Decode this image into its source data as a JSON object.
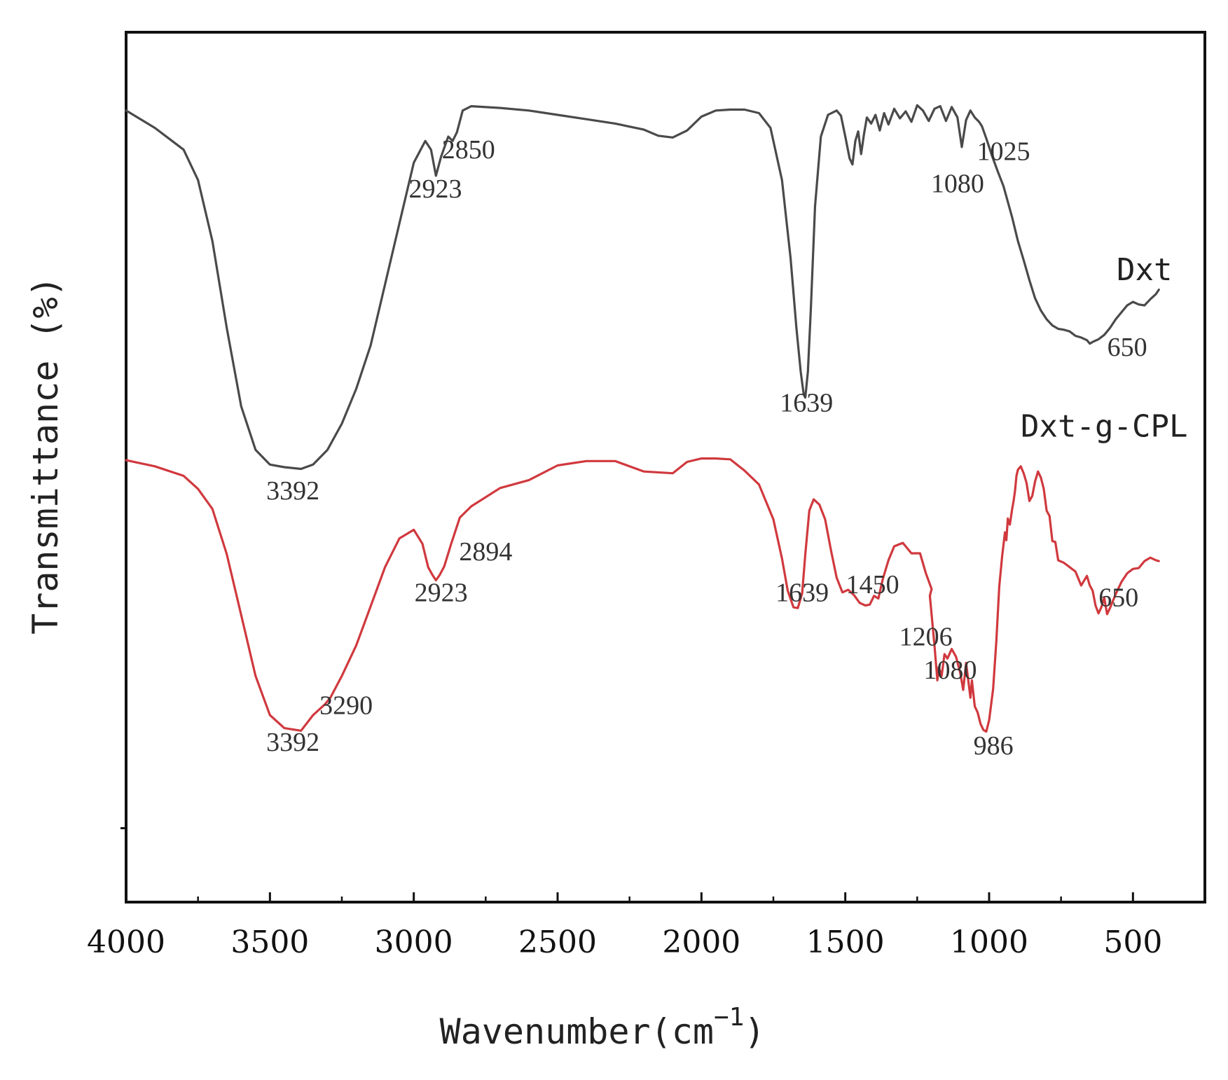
{
  "chart_data": {
    "type": "line",
    "title": "",
    "xlabel": "Wavenumber(cm",
    "xlabel_sup": "−1",
    "xlabel_close": ")",
    "ylabel": "Transmittance (%)",
    "xlim": [
      4000,
      250
    ],
    "ylim": [
      0,
      100
    ],
    "x_ticks": [
      4000,
      3500,
      3000,
      2500,
      2000,
      1500,
      1000,
      500
    ],
    "x_tick_labels": [
      "4000",
      "3500",
      "3000",
      "2500",
      "2000",
      "1500",
      "1000",
      "500"
    ],
    "grid": false,
    "series": [
      {
        "name": "Dxt",
        "color": "#4a4a4a",
        "x": [
          4000,
          3900,
          3800,
          3750,
          3700,
          3650,
          3600,
          3550,
          3500,
          3450,
          3392,
          3350,
          3300,
          3250,
          3200,
          3150,
          3100,
          3050,
          3000,
          2960,
          2940,
          2923,
          2905,
          2880,
          2865,
          2850,
          2830,
          2800,
          2700,
          2600,
          2500,
          2400,
          2300,
          2200,
          2150,
          2100,
          2050,
          2000,
          1950,
          1900,
          1850,
          1800,
          1760,
          1720,
          1690,
          1670,
          1655,
          1645,
          1639,
          1630,
          1620,
          1605,
          1585,
          1560,
          1530,
          1515,
          1500,
          1485,
          1475,
          1465,
          1455,
          1445,
          1435,
          1425,
          1410,
          1395,
          1380,
          1365,
          1350,
          1330,
          1310,
          1290,
          1270,
          1250,
          1230,
          1210,
          1190,
          1170,
          1150,
          1130,
          1110,
          1095,
          1080,
          1065,
          1050,
          1035,
          1025,
          1010,
          990,
          970,
          950,
          920,
          900,
          880,
          860,
          840,
          820,
          800,
          780,
          760,
          740,
          720,
          700,
          680,
          660,
          650,
          640,
          620,
          600,
          580,
          560,
          540,
          520,
          500,
          480,
          460,
          440,
          420,
          410
        ],
        "values": [
          91,
          89,
          86.5,
          83,
          76,
          66,
          57,
          52,
          50.3,
          50,
          49.8,
          50.3,
          52,
          55,
          59,
          64,
          71,
          78,
          85,
          87.5,
          86.5,
          83.5,
          85.7,
          88,
          87.5,
          88.5,
          91,
          91.5,
          91.3,
          91,
          90.5,
          90,
          89.5,
          88.8,
          88.1,
          87.9,
          88.7,
          90.3,
          91,
          91.1,
          91.1,
          90.7,
          89,
          83,
          74,
          66,
          61,
          58.5,
          58,
          61,
          68,
          80,
          88,
          90.5,
          91,
          90.4,
          88,
          85.5,
          84.8,
          87.5,
          88.6,
          86,
          88.3,
          90.2,
          89.5,
          90.5,
          88.7,
          90.7,
          89.4,
          91.2,
          90.1,
          90.9,
          89.7,
          91.6,
          91,
          89.8,
          91.2,
          91.5,
          89.8,
          91.4,
          90.2,
          86.8,
          89.9,
          91,
          90.2,
          89.7,
          89.2,
          87.8,
          85.8,
          84,
          82.3,
          78.7,
          76,
          73.8,
          71.5,
          69.4,
          68,
          67,
          66.3,
          65.9,
          65.8,
          65.6,
          65.1,
          64.9,
          64.6,
          64.2,
          64.4,
          64.7,
          65.2,
          66,
          67,
          67.8,
          68.6,
          69,
          68.7,
          68.6,
          69.3,
          69.9,
          70.4
        ]
      },
      {
        "name": "Dxt-g-CPL",
        "color": "#d0393e",
        "x": [
          4000,
          3900,
          3800,
          3750,
          3700,
          3650,
          3600,
          3550,
          3500,
          3450,
          3392,
          3350,
          3310,
          3290,
          3250,
          3200,
          3150,
          3100,
          3050,
          3000,
          2970,
          2950,
          2935,
          2923,
          2910,
          2894,
          2870,
          2840,
          2800,
          2700,
          2600,
          2500,
          2400,
          2300,
          2200,
          2100,
          2050,
          2000,
          1950,
          1900,
          1850,
          1800,
          1750,
          1720,
          1700,
          1680,
          1665,
          1650,
          1639,
          1625,
          1610,
          1590,
          1570,
          1550,
          1530,
          1510,
          1490,
          1470,
          1450,
          1430,
          1415,
          1400,
          1385,
          1370,
          1350,
          1330,
          1300,
          1270,
          1240,
          1220,
          1200,
          1206,
          1190,
          1180,
          1175,
          1165,
          1155,
          1145,
          1130,
          1115,
          1100,
          1090,
          1080,
          1070,
          1065,
          1060,
          1050,
          1040,
          1030,
          1020,
          1010,
          1000,
          986,
          975,
          965,
          955,
          945,
          940,
          935,
          928,
          920,
          915,
          910,
          905,
          900,
          890,
          880,
          870,
          860,
          850,
          840,
          830,
          820,
          810,
          800,
          790,
          780,
          770,
          760,
          740,
          720,
          700,
          680,
          660,
          650,
          640,
          630,
          620,
          610,
          600,
          590,
          580,
          560,
          540,
          520,
          500,
          480,
          460,
          440,
          420,
          410
        ],
        "values": [
          50.8,
          50.1,
          49,
          47.5,
          45.2,
          40,
          33,
          26,
          21.5,
          20,
          19.7,
          21.5,
          22.7,
          23.5,
          26,
          29.5,
          34,
          38.5,
          41.8,
          42.8,
          41.2,
          38.5,
          37.6,
          37,
          37.6,
          38.6,
          41.2,
          44.2,
          45.5,
          47.6,
          48.5,
          50.2,
          50.7,
          50.7,
          49.5,
          49.3,
          50.6,
          51,
          51,
          50.9,
          49.6,
          48,
          44,
          39.5,
          35.8,
          33.9,
          33.8,
          35.5,
          40,
          45,
          46.3,
          45.7,
          44,
          40.5,
          37.3,
          35.6,
          35.9,
          35.3,
          34.4,
          34.1,
          34.2,
          35.2,
          34.9,
          37.1,
          39.3,
          40.9,
          41.3,
          40.1,
          40.1,
          37.8,
          36,
          35.2,
          29.5,
          25.5,
          27,
          26,
          28.5,
          28,
          29.1,
          28.2,
          26.3,
          24.4,
          27.5,
          24.8,
          23.5,
          25.5,
          22.5,
          21.8,
          20.5,
          19.8,
          19.6,
          20.9,
          24.5,
          30,
          36.2,
          39.7,
          42.5,
          41.6,
          44.1,
          43.4,
          45.2,
          46.1,
          47.3,
          49,
          49.7,
          50.1,
          49.3,
          48.2,
          46.1,
          46.7,
          48.4,
          49.5,
          48.8,
          47.5,
          45,
          44.4,
          41.5,
          41.4,
          39.3,
          39,
          38.5,
          38,
          36.4,
          37.5,
          36.4,
          35.8,
          34.1,
          33.2,
          33.9,
          35,
          33.1,
          33.8,
          35.4,
          36.8,
          37.8,
          38.3,
          38.4,
          39.2,
          39.6,
          39.3,
          39.2
        ]
      }
    ],
    "series_labels": [
      {
        "text": "Dxt",
        "x": 460,
        "y": 71.5
      },
      {
        "text": "Dxt-g-CPL",
        "x": 600,
        "y": 53.5
      }
    ],
    "annotations": [
      {
        "text": "2850",
        "x": 2810,
        "y": 85.5
      },
      {
        "text": "2923",
        "x": 2925,
        "y": 81
      },
      {
        "text": "1025",
        "x": 950,
        "y": 85.3
      },
      {
        "text": "1080",
        "x": 1110,
        "y": 81.6
      },
      {
        "text": "650",
        "x": 520,
        "y": 62.8
      },
      {
        "text": "1639",
        "x": 1635,
        "y": 56.4
      },
      {
        "text": "3392",
        "x": 3420,
        "y": 46.3
      },
      {
        "text": "2894",
        "x": 2750,
        "y": 39.3
      },
      {
        "text": "2923",
        "x": 2905,
        "y": 34.6
      },
      {
        "text": "1639",
        "x": 1650,
        "y": 34.6
      },
      {
        "text": "1450",
        "x": 1405,
        "y": 35.5
      },
      {
        "text": "650",
        "x": 550,
        "y": 34
      },
      {
        "text": "1206",
        "x": 1220,
        "y": 29.5
      },
      {
        "text": "1080",
        "x": 1135,
        "y": 25.7
      },
      {
        "text": "3290",
        "x": 3235,
        "y": 21.6
      },
      {
        "text": "986",
        "x": 985,
        "y": 17
      },
      {
        "text": "3392",
        "x": 3420,
        "y": 17.4
      }
    ]
  }
}
